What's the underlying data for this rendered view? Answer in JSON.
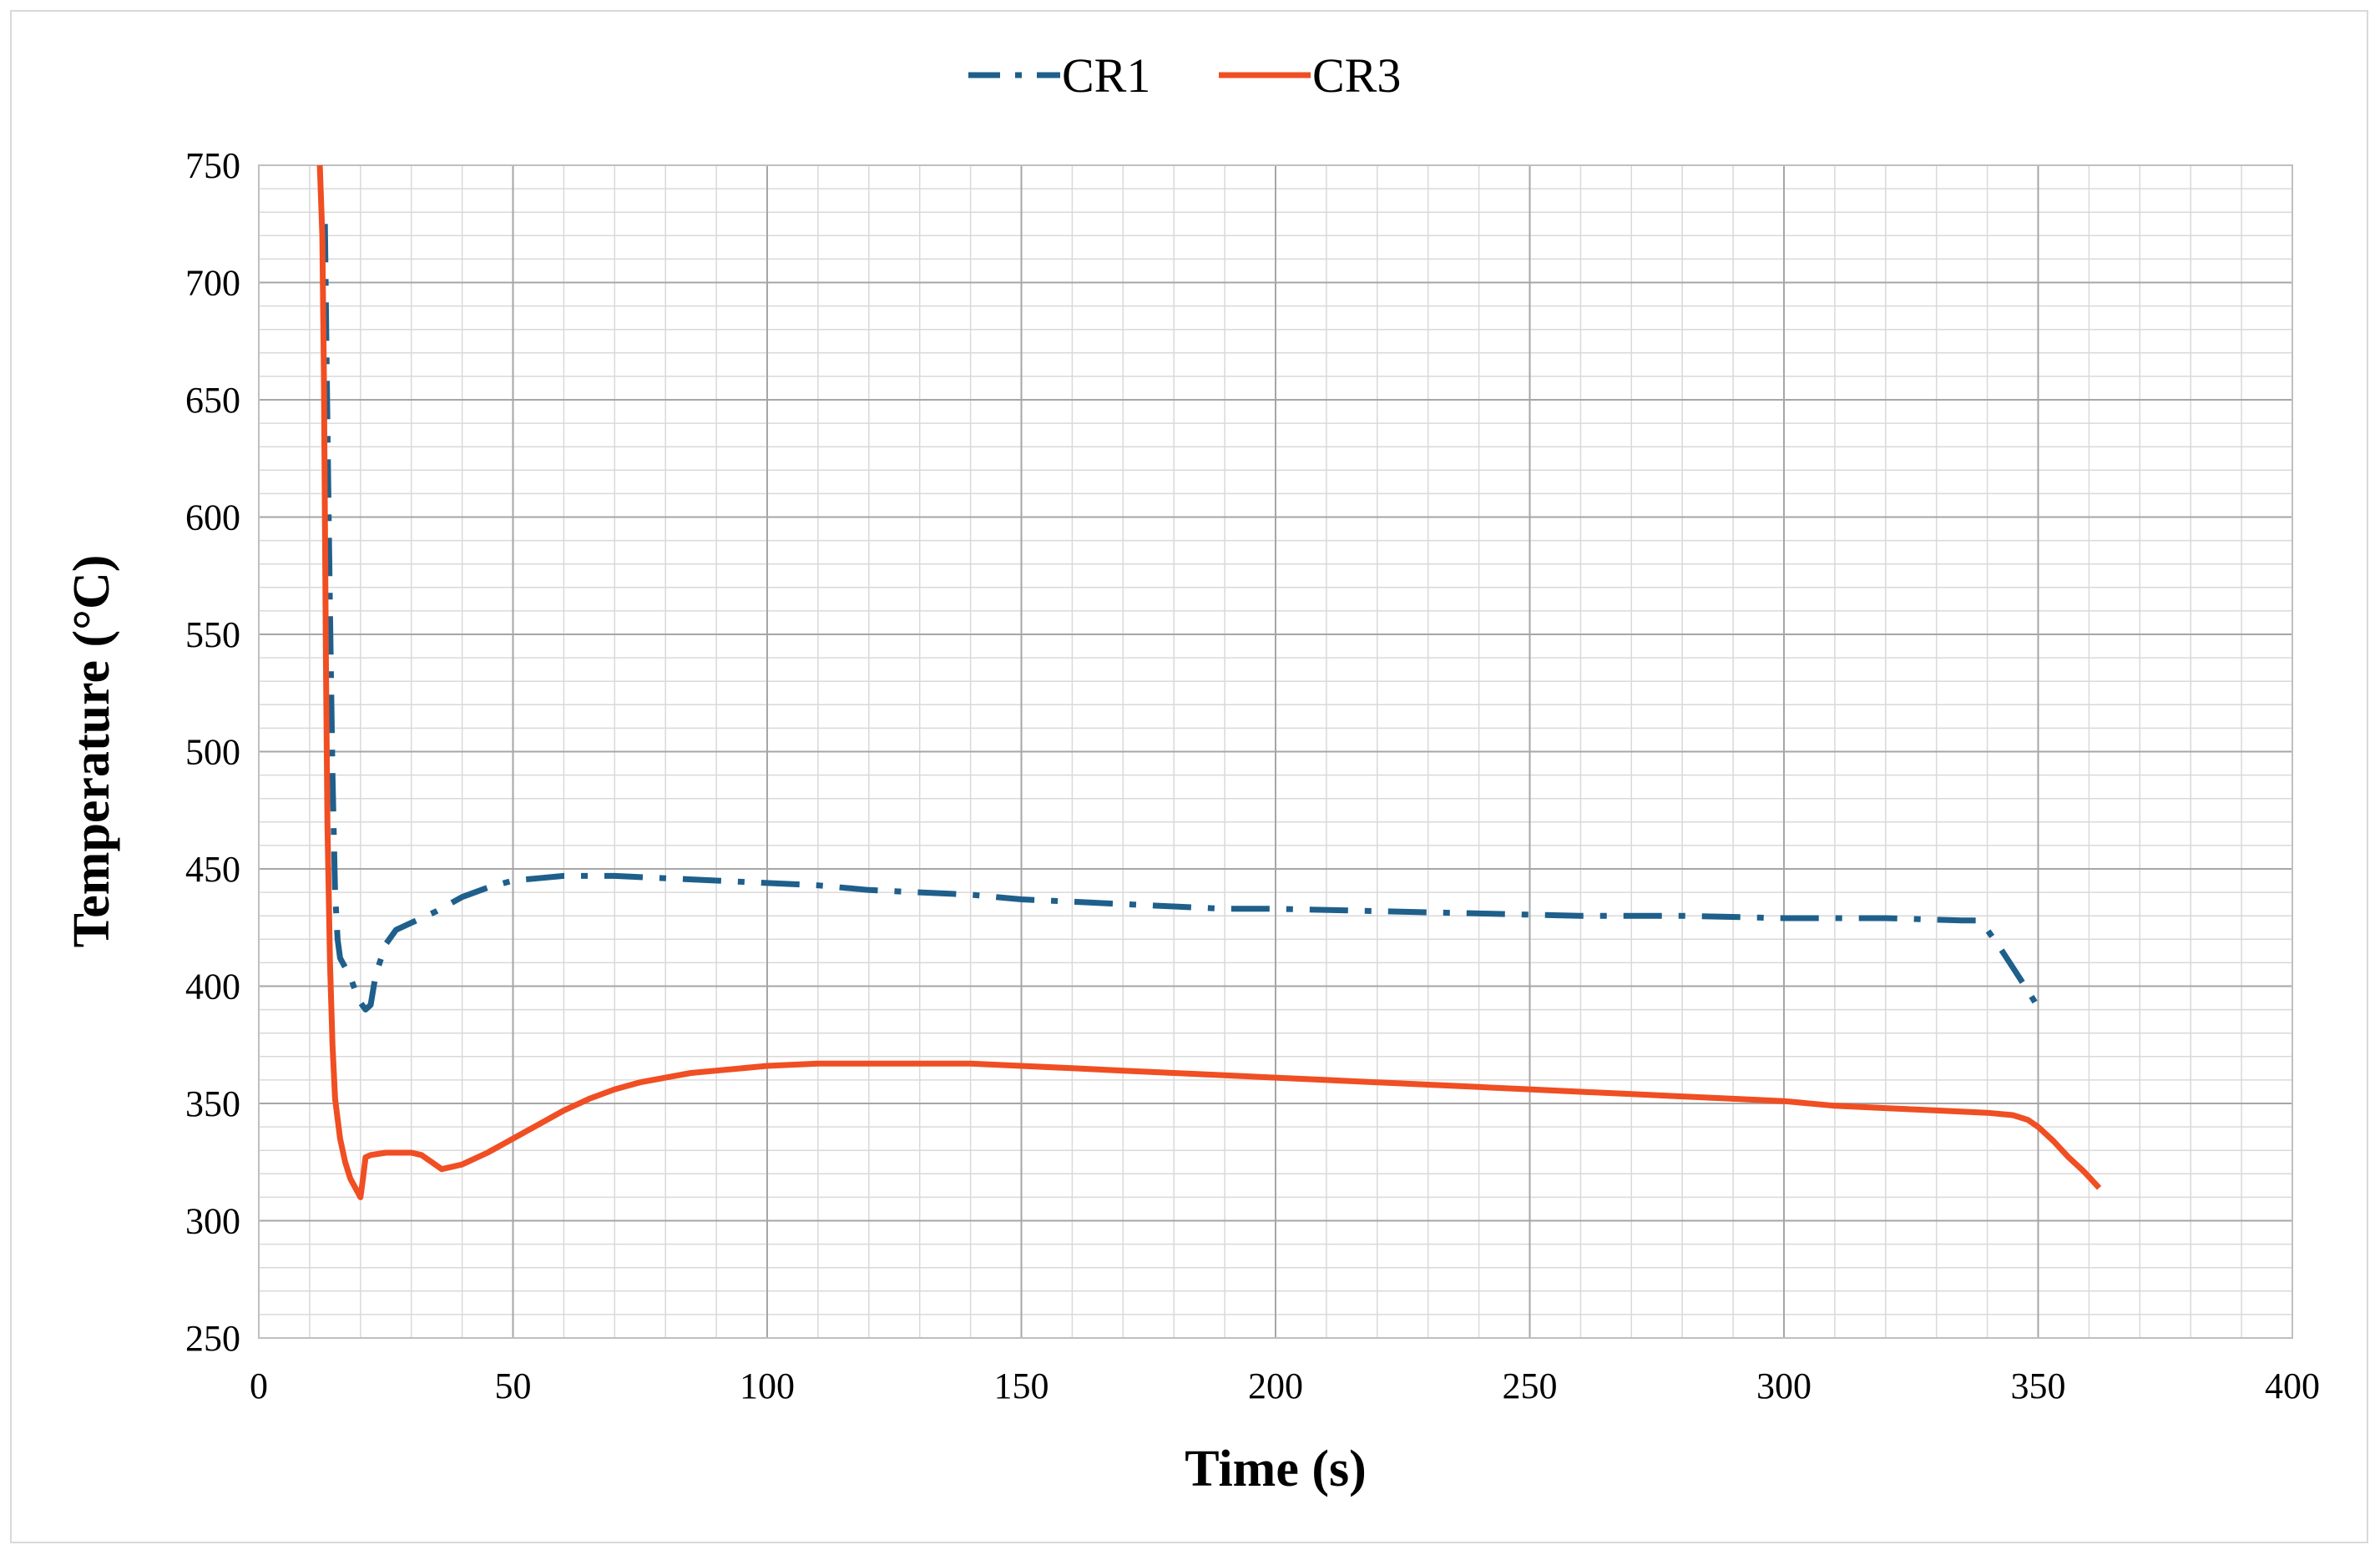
{
  "chart_data": {
    "type": "line",
    "title": "",
    "xlabel": "Time (s)",
    "ylabel": "Temperature (°C)",
    "xlim": [
      0,
      400
    ],
    "ylim": [
      250,
      750
    ],
    "x_ticks": [
      0,
      50,
      100,
      150,
      200,
      250,
      300,
      350,
      400
    ],
    "y_ticks": [
      250,
      300,
      350,
      400,
      450,
      500,
      550,
      600,
      650,
      700,
      750
    ],
    "x_minor_step": 10,
    "y_minor_step": 10,
    "grid": true,
    "legend_position": "top-center",
    "series": [
      {
        "name": "CR1",
        "color": "#1f5f8b",
        "style": "dash-dot",
        "points": [
          [
            13,
            725
          ],
          [
            13.5,
            640
          ],
          [
            14,
            560
          ],
          [
            14.5,
            490
          ],
          [
            15,
            440
          ],
          [
            15.5,
            420
          ],
          [
            16,
            412
          ],
          [
            17,
            408
          ],
          [
            18,
            404
          ],
          [
            19,
            398
          ],
          [
            20,
            393
          ],
          [
            21,
            390
          ],
          [
            22,
            392
          ],
          [
            23,
            405
          ],
          [
            25,
            418
          ],
          [
            27,
            424
          ],
          [
            30,
            427
          ],
          [
            35,
            432
          ],
          [
            40,
            438
          ],
          [
            45,
            442
          ],
          [
            50,
            445
          ],
          [
            55,
            446
          ],
          [
            60,
            447
          ],
          [
            70,
            447
          ],
          [
            80,
            446
          ],
          [
            90,
            445
          ],
          [
            100,
            444
          ],
          [
            110,
            443
          ],
          [
            120,
            441
          ],
          [
            130,
            440
          ],
          [
            140,
            439
          ],
          [
            150,
            437
          ],
          [
            160,
            436
          ],
          [
            170,
            435
          ],
          [
            180,
            434
          ],
          [
            190,
            433
          ],
          [
            200,
            433
          ],
          [
            220,
            432
          ],
          [
            240,
            431
          ],
          [
            260,
            430
          ],
          [
            280,
            430
          ],
          [
            300,
            429
          ],
          [
            320,
            429
          ],
          [
            335,
            428
          ],
          [
            338,
            428
          ],
          [
            340,
            424
          ],
          [
            342,
            418
          ],
          [
            345,
            408
          ],
          [
            348,
            398
          ],
          [
            350,
            391
          ]
        ]
      },
      {
        "name": "CR3",
        "color": "#f04e23",
        "style": "solid",
        "points": [
          [
            12,
            750
          ],
          [
            12.5,
            720
          ],
          [
            12.8,
            660
          ],
          [
            13,
            600
          ],
          [
            13.2,
            540
          ],
          [
            13.5,
            470
          ],
          [
            14,
            410
          ],
          [
            14.5,
            375
          ],
          [
            15,
            352
          ],
          [
            16,
            335
          ],
          [
            17,
            325
          ],
          [
            18,
            318
          ],
          [
            19,
            314
          ],
          [
            20,
            310
          ],
          [
            20.5,
            318
          ],
          [
            21,
            327
          ],
          [
            22,
            328
          ],
          [
            25,
            329
          ],
          [
            30,
            329
          ],
          [
            32,
            328
          ],
          [
            34,
            325
          ],
          [
            36,
            322
          ],
          [
            40,
            324
          ],
          [
            45,
            329
          ],
          [
            50,
            335
          ],
          [
            55,
            341
          ],
          [
            60,
            347
          ],
          [
            65,
            352
          ],
          [
            70,
            356
          ],
          [
            75,
            359
          ],
          [
            80,
            361
          ],
          [
            85,
            363
          ],
          [
            90,
            364
          ],
          [
            100,
            366
          ],
          [
            110,
            367
          ],
          [
            120,
            367
          ],
          [
            130,
            367
          ],
          [
            140,
            367
          ],
          [
            150,
            366
          ],
          [
            160,
            365
          ],
          [
            170,
            364
          ],
          [
            180,
            363
          ],
          [
            190,
            362
          ],
          [
            200,
            361
          ],
          [
            210,
            360
          ],
          [
            220,
            359
          ],
          [
            230,
            358
          ],
          [
            240,
            357
          ],
          [
            250,
            356
          ],
          [
            260,
            355
          ],
          [
            270,
            354
          ],
          [
            280,
            353
          ],
          [
            290,
            352
          ],
          [
            300,
            351
          ],
          [
            310,
            349
          ],
          [
            320,
            348
          ],
          [
            330,
            347
          ],
          [
            340,
            346
          ],
          [
            345,
            345
          ],
          [
            348,
            343
          ],
          [
            350,
            340
          ],
          [
            353,
            334
          ],
          [
            356,
            327
          ],
          [
            359,
            321
          ],
          [
            362,
            314
          ]
        ]
      }
    ]
  }
}
